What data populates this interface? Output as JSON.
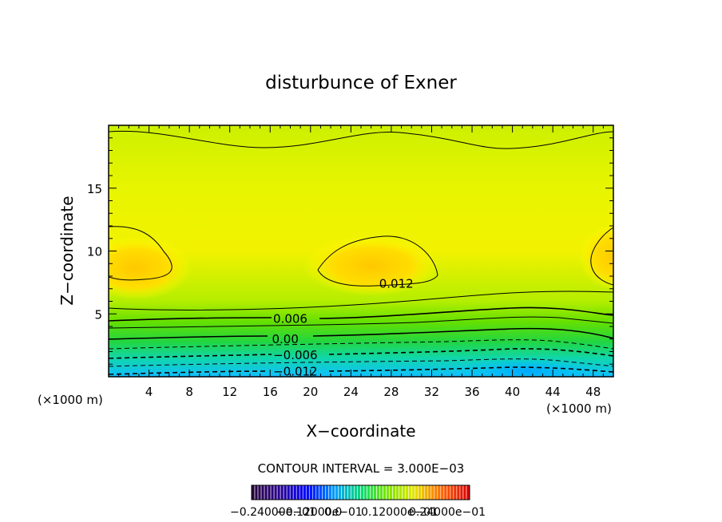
{
  "chart_data": {
    "type": "heatmap",
    "title": "disturbunce of Exner",
    "xlabel": "X−coordinate",
    "ylabel": "Z−coordinate",
    "x_unit_left": "(×1000 m)",
    "x_unit_right": "(×1000 m)",
    "xlim": [
      0,
      50
    ],
    "ylim": [
      0,
      20
    ],
    "x_ticks": [
      4,
      8,
      12,
      16,
      20,
      24,
      28,
      32,
      36,
      40,
      44,
      48
    ],
    "x_tick_labels": [
      "4",
      "8",
      "12",
      "16",
      "20",
      "24",
      "28",
      "32",
      "36",
      "40",
      "44",
      "48"
    ],
    "y_ticks": [
      5,
      10,
      15
    ],
    "y_tick_labels": [
      "5",
      "10",
      "15"
    ],
    "contour_labels": [
      {
        "text": "0.012",
        "x": 28.5,
        "y": 7.4
      },
      {
        "text": "0.006",
        "x": 18.0,
        "y": 4.6
      },
      {
        "text": "0.00",
        "x": 17.5,
        "y": 3.0
      },
      {
        "text": "−0.006",
        "x": 18.5,
        "y": 1.7
      },
      {
        "text": "−0.012",
        "x": 18.5,
        "y": 0.4
      }
    ],
    "contour_interval_text": "CONTOUR INTERVAL =  3.000E−03",
    "colorbar_labels_text": "−0.24000e−01",
    "colorbar_labels_text2": "−0.12000e−01",
    "colorbar_labels_text3": "0.0",
    "colorbar_labels_text4": "0.12000e−01",
    "colorbar_labels_text5": "0.24000e−01",
    "colorbar_range": [
      -0.024,
      0.024
    ]
  }
}
